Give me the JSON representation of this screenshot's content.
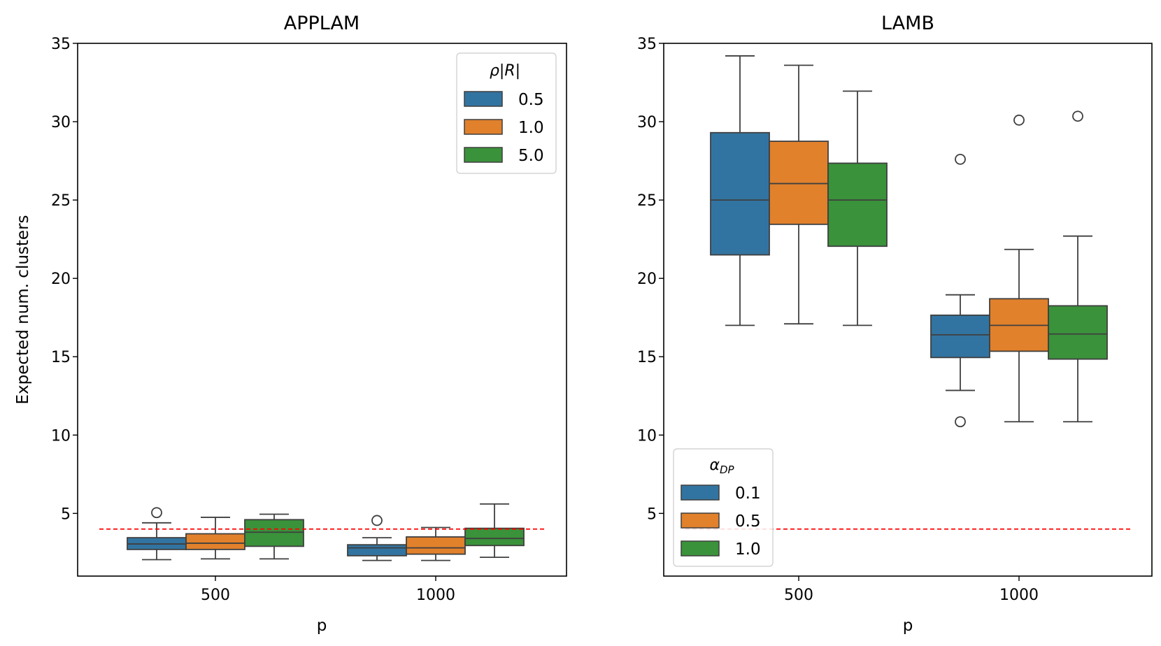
{
  "chart_data": [
    {
      "type": "box",
      "title": "APPLAM",
      "xlabel": "p",
      "ylabel": "Expected num. clusters",
      "ylim": [
        1,
        35
      ],
      "yticks": [
        5,
        10,
        15,
        20,
        25,
        30,
        35
      ],
      "categories": [
        "500",
        "1000"
      ],
      "reference_line": 4,
      "legend": {
        "title": "ρ|R|",
        "position": "upper right",
        "entries": [
          "0.5",
          "1.0",
          "5.0"
        ]
      },
      "series": [
        {
          "name": "0.5",
          "boxes": [
            {
              "category": "500",
              "whislo": 2.05,
              "q1": 2.7,
              "median": 3.05,
              "q3": 3.45,
              "whishi": 4.4,
              "fliers": [
                5.05
              ]
            },
            {
              "category": "1000",
              "whislo": 2.0,
              "q1": 2.3,
              "median": 2.8,
              "q3": 3.0,
              "whishi": 3.45,
              "fliers": [
                4.55
              ]
            }
          ]
        },
        {
          "name": "1.0",
          "boxes": [
            {
              "category": "500",
              "whislo": 2.1,
              "q1": 2.7,
              "median": 3.1,
              "q3": 3.7,
              "whishi": 4.75,
              "fliers": []
            },
            {
              "category": "1000",
              "whislo": 2.0,
              "q1": 2.4,
              "median": 2.8,
              "q3": 3.5,
              "whishi": 4.1,
              "fliers": []
            }
          ]
        },
        {
          "name": "5.0",
          "boxes": [
            {
              "category": "500",
              "whislo": 2.1,
              "q1": 2.9,
              "median": 3.8,
              "q3": 4.6,
              "whishi": 4.95,
              "fliers": []
            },
            {
              "category": "1000",
              "whislo": 2.2,
              "q1": 2.95,
              "median": 3.4,
              "q3": 4.05,
              "whishi": 5.6,
              "fliers": []
            }
          ]
        }
      ]
    },
    {
      "type": "box",
      "title": "LAMB",
      "xlabel": "p",
      "ylabel": "",
      "ylim": [
        1,
        35
      ],
      "yticks": [
        5,
        10,
        15,
        20,
        25,
        30,
        35
      ],
      "categories": [
        "500",
        "1000"
      ],
      "reference_line": 4,
      "legend": {
        "title": "αDP",
        "position": "lower left",
        "entries": [
          "0.1",
          "0.5",
          "1.0"
        ]
      },
      "series": [
        {
          "name": "0.1",
          "boxes": [
            {
              "category": "500",
              "whislo": 17.0,
              "q1": 21.5,
              "median": 25.0,
              "q3": 29.3,
              "whishi": 34.2,
              "fliers": []
            },
            {
              "category": "1000",
              "whislo": 12.85,
              "q1": 14.95,
              "median": 16.4,
              "q3": 17.65,
              "whishi": 18.95,
              "fliers": [
                27.6,
                10.85
              ]
            }
          ]
        },
        {
          "name": "0.5",
          "boxes": [
            {
              "category": "500",
              "whislo": 17.1,
              "q1": 23.45,
              "median": 26.05,
              "q3": 28.75,
              "whishi": 33.6,
              "fliers": []
            },
            {
              "category": "1000",
              "whislo": 10.85,
              "q1": 15.35,
              "median": 17.0,
              "q3": 18.7,
              "whishi": 21.85,
              "fliers": [
                30.1
              ]
            }
          ]
        },
        {
          "name": "1.0",
          "boxes": [
            {
              "category": "500",
              "whislo": 17.0,
              "q1": 22.05,
              "median": 25.0,
              "q3": 27.35,
              "whishi": 31.95,
              "fliers": []
            },
            {
              "category": "1000",
              "whislo": 10.85,
              "q1": 14.85,
              "median": 16.45,
              "q3": 18.25,
              "whishi": 22.7,
              "fliers": [
                30.35
              ]
            }
          ]
        }
      ]
    }
  ],
  "colors": {
    "series": [
      "#3274a1",
      "#e1812c",
      "#3a923a"
    ],
    "edge": "#3f3f3f",
    "reference_line": "#ff0000"
  }
}
